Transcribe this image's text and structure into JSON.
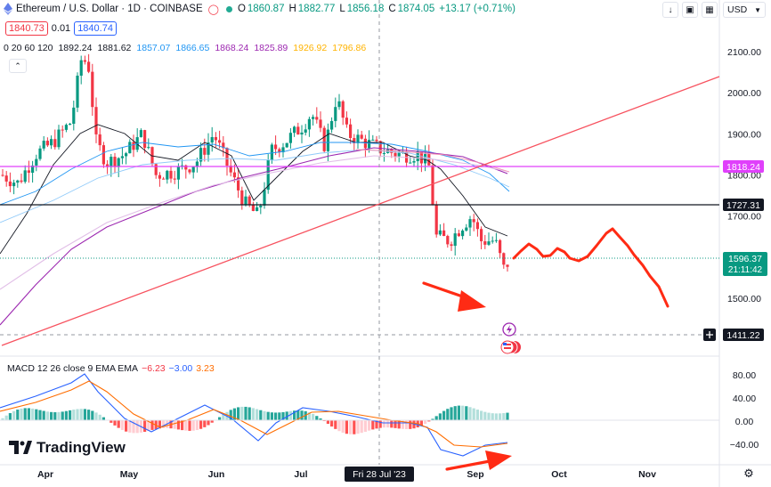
{
  "header": {
    "symbol_title": "Ethereum / U.S. Dollar · 1D · COINBASE",
    "open_label": "O",
    "open": "1860.87",
    "high_label": "H",
    "high": "1882.77",
    "low_label": "L",
    "low": "1856.18",
    "close_label": "C",
    "close": "1874.05",
    "change": "+13.17 (+0.71%)"
  },
  "quote": {
    "sell": "1840.73",
    "spread": "0.01",
    "buy": "1840.74"
  },
  "ma_legend": {
    "label": "0 20 60 120",
    "values": [
      "1892.24",
      "1881.62",
      "1857.07",
      "1866.65",
      "1868.24",
      "1825.89",
      "1926.92",
      "1796.86"
    ]
  },
  "currency": "USD",
  "price_axis": {
    "ticks": [
      "2100.00",
      "2000.00",
      "1900.00",
      "1800.00",
      "1700.00",
      "1500.00"
    ],
    "tags": {
      "magenta": "1818.24",
      "black": "1727.31",
      "last_price": "1596.37",
      "countdown": "21:11:42",
      "crosshair": "1411.22"
    }
  },
  "time_axis": {
    "labels": [
      "Apr",
      "May",
      "Jun",
      "Jul",
      "Sep",
      "Oct",
      "Nov"
    ],
    "crosshair_date": "Fri 28 Jul '23"
  },
  "macd": {
    "label": "MACD  12  26  close  9  EMA  EMA",
    "histogram": "−6.23",
    "macd": "−3.00",
    "signal": "3.23",
    "ticks": [
      "80.00",
      "40.00",
      "0.00",
      "−40.00"
    ]
  },
  "brand": {
    "name": "TradingView"
  },
  "colors": {
    "up": "#089981",
    "down": "#f23645",
    "accent": "#2962ff",
    "magenta_line": "#e040fb",
    "annotation": "#ff2b14"
  }
}
